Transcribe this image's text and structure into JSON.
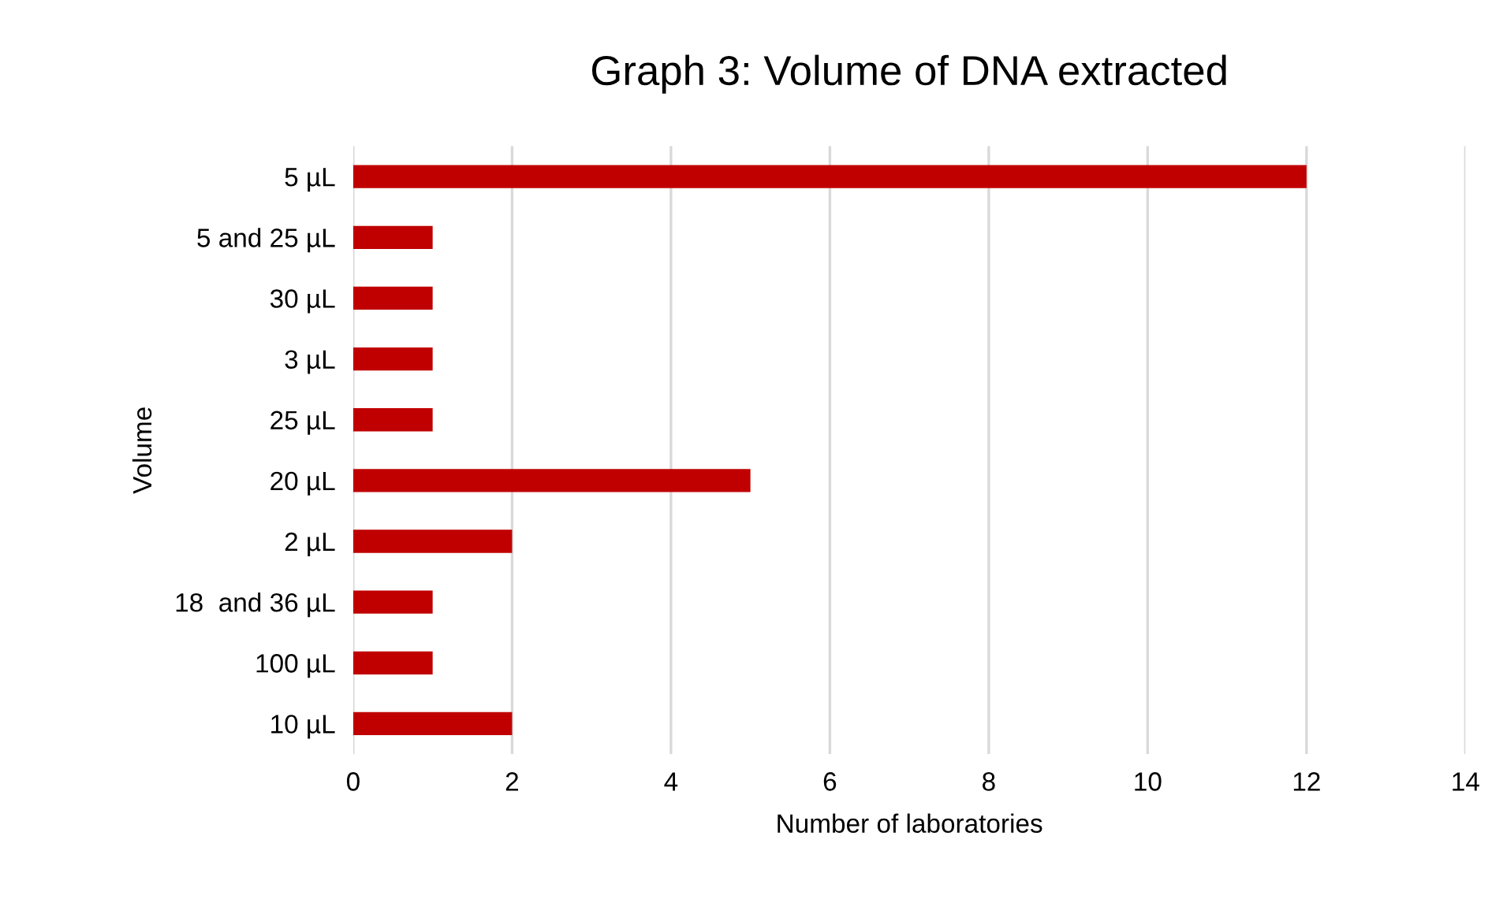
{
  "chart_data": {
    "type": "bar",
    "orientation": "horizontal",
    "title": "Graph 3: Volume of DNA extracted",
    "xlabel": "Number of laboratories",
    "ylabel": "Volume",
    "categories": [
      "5 µL",
      "5 and 25 µL",
      "30 µL",
      "3 µL",
      "25 µL",
      "20 µL",
      "2 µL",
      "18  and 36 µL",
      "100 µL",
      "10 µL"
    ],
    "values": [
      12,
      1,
      1,
      1,
      1,
      5,
      2,
      1,
      1,
      2
    ],
    "color": "#c00000",
    "xlim": [
      0,
      14
    ],
    "xticks": [
      0,
      2,
      4,
      6,
      8,
      10,
      12,
      14
    ],
    "grid": "x",
    "legend": false
  }
}
